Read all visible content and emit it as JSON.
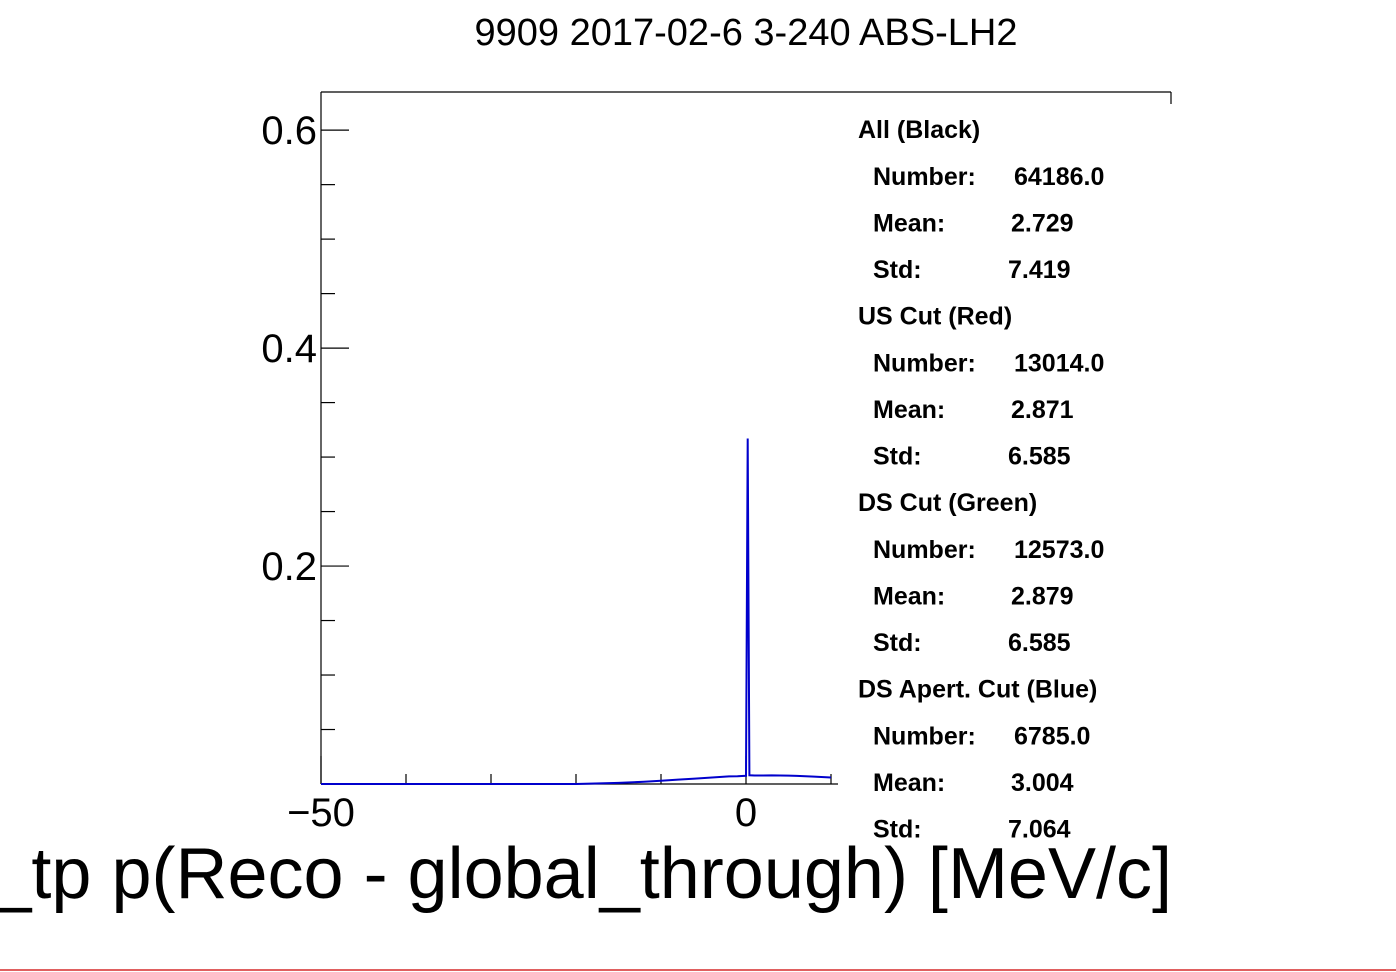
{
  "chart_data": {
    "type": "line",
    "title": "9909 2017-02-6 3-240 ABS-LH2",
    "xlabel": "kd_tp p(Reco - global_through) [MeV/c]",
    "ylabel": "",
    "xlim": [
      -50,
      50
    ],
    "ylim": [
      0,
      0.635
    ],
    "x_tick_labels": [
      {
        "value": -50,
        "label": "−50"
      },
      {
        "value": 0,
        "label": "0"
      }
    ],
    "y_tick_labels": [
      {
        "value": 0.2,
        "label": "0.2"
      },
      {
        "value": 0.4,
        "label": "0.4"
      },
      {
        "value": 0.6,
        "label": "0.6"
      }
    ],
    "series": [
      {
        "name": "DS Apert. Cut (Blue)",
        "color": "#0000cc",
        "x": [
          -50,
          -20,
          -15,
          -12,
          -10,
          -8,
          -6,
          -4,
          -2,
          -1,
          0,
          0.2,
          0.4,
          1,
          2,
          3,
          4,
          5,
          6,
          8,
          10
        ],
        "y": [
          0,
          0,
          0.001,
          0.002,
          0.003,
          0.004,
          0.005,
          0.006,
          0.007,
          0.0072,
          0.0075,
          0.317,
          0.008,
          0.0078,
          0.0078,
          0.0079,
          0.0078,
          0.0077,
          0.0074,
          0.0068,
          0.006
        ]
      }
    ],
    "stats": [
      {
        "header": "All (Black)",
        "number": "64186.0",
        "mean": "2.729",
        "std": "7.419"
      },
      {
        "header": "US Cut (Red)",
        "number": "13014.0",
        "mean": "2.871",
        "std": "6.585"
      },
      {
        "header": "DS Cut (Green)",
        "number": "12573.0",
        "mean": "2.879",
        "std": "6.585"
      },
      {
        "header": "DS Apert. Cut (Blue)",
        "number": "6785.0",
        "mean": "3.004",
        "std": "7.064"
      }
    ],
    "stats_labels": {
      "number": "Number:",
      "mean": "Mean:",
      "std": "Std:"
    },
    "grid": false,
    "legend_position": "top-right"
  }
}
